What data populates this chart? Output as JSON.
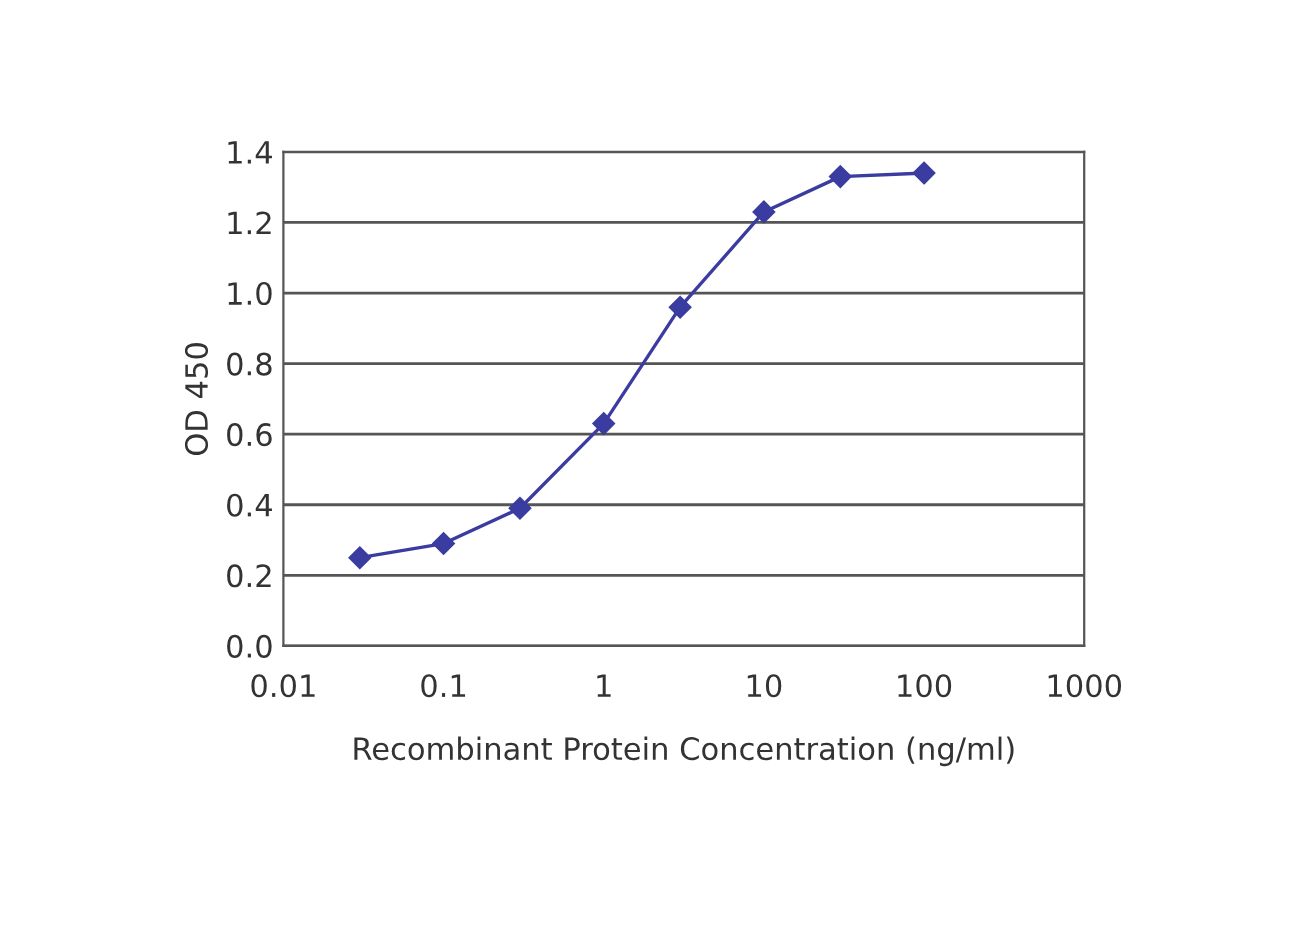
{
  "chart_data": {
    "type": "line",
    "xlabel": "Recombinant Protein Concentration (ng/ml)",
    "ylabel": "OD 450",
    "x": [
      0.03,
      0.1,
      0.3,
      1,
      3,
      10,
      30,
      100
    ],
    "series": [
      {
        "color": "#3a3ca0",
        "values": [
          0.25,
          0.29,
          0.39,
          0.63,
          0.96,
          1.23,
          1.33,
          1.34
        ]
      }
    ],
    "log": "x",
    "xlim": [
      0.01,
      1000
    ],
    "xticks": [
      0.01,
      0.1,
      1,
      10,
      100,
      1000
    ],
    "ylim": [
      0,
      1.4
    ],
    "yticks": [
      {
        "value": 0,
        "label": "0.0"
      },
      {
        "value": 0.2,
        "label": "0.2"
      },
      {
        "value": 0.4,
        "label": "0.4"
      },
      {
        "value": 0.6,
        "label": "0.6"
      },
      {
        "value": 0.8,
        "label": "0.8"
      },
      {
        "value": 1.0,
        "label": "1.0"
      },
      {
        "value": 1.2,
        "label": "1.2"
      },
      {
        "value": 1.4,
        "label": "1.4"
      }
    ],
    "grid": "y",
    "marker": "diamond",
    "line_style": "solid",
    "legend": false
  }
}
